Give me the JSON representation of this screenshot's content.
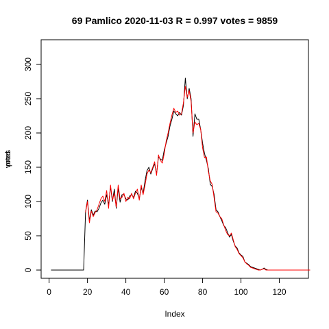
{
  "chart_data": {
    "type": "line",
    "title": "69 Pamlico 2020-11-03 R = 0.997 votes = 9859",
    "xlabel": "Index",
    "ylabel_overlap": [
      "votes",
      "pred"
    ],
    "xlim": [
      1,
      130
    ],
    "ylim": [
      0,
      300
    ],
    "x_ticks": [
      0,
      20,
      40,
      60,
      80,
      100,
      120
    ],
    "y_ticks": [
      0,
      50,
      100,
      150,
      200,
      250,
      300
    ],
    "grid": false,
    "legend": "none",
    "series": [
      {
        "color": "#000000",
        "values": [
          0,
          0,
          0,
          0,
          0,
          0,
          0,
          0,
          0,
          0,
          0,
          0,
          0,
          0,
          0,
          0,
          0,
          0,
          85,
          102,
          72,
          88,
          80,
          86,
          85,
          90,
          98,
          102,
          96,
          110,
          95,
          122,
          100,
          118,
          90,
          120,
          99,
          110,
          110,
          104,
          102,
          108,
          110,
          106,
          115,
          112,
          104,
          120,
          112,
          130,
          145,
          150,
          140,
          148,
          155,
          140,
          165,
          162,
          160,
          175,
          185,
          195,
          210,
          220,
          232,
          228,
          225,
          230,
          226,
          240,
          280,
          250,
          265,
          250,
          195,
          228,
          220,
          220,
          205,
          185,
          170,
          160,
          148,
          125,
          122,
          110,
          88,
          85,
          78,
          72,
          65,
          62,
          55,
          48,
          52,
          42,
          35,
          32,
          25,
          22,
          20,
          12,
          10,
          8,
          5,
          4,
          3,
          2,
          1,
          0,
          1,
          3,
          1,
          0,
          0,
          0,
          0,
          0,
          0,
          0,
          0,
          0,
          0,
          0,
          0,
          0,
          0,
          0,
          0,
          0,
          0,
          0,
          0,
          0,
          0,
          0
        ]
      },
      {
        "color": "#ff0000",
        "values": [
          null,
          null,
          null,
          null,
          null,
          null,
          null,
          null,
          null,
          null,
          null,
          null,
          null,
          null,
          null,
          null,
          null,
          null,
          84,
          100,
          69,
          86,
          78,
          84,
          88,
          96,
          104,
          108,
          100,
          116,
          90,
          124,
          102,
          112,
          92,
          124,
          104,
          106,
          112,
          100,
          106,
          104,
          112,
          104,
          112,
          118,
          102,
          124,
          110,
          124,
          140,
          146,
          142,
          150,
          158,
          138,
          168,
          160,
          156,
          170,
          188,
          200,
          214,
          226,
          236,
          230,
          232,
          226,
          228,
          244,
          268,
          252,
          262,
          246,
          200,
          216,
          212,
          214,
          205,
          178,
          164,
          165,
          144,
          130,
          125,
          105,
          85,
          83,
          78,
          75,
          66,
          58,
          52,
          50,
          54,
          44,
          34,
          30,
          24,
          21,
          18,
          12,
          9,
          7,
          4,
          3,
          2,
          1,
          0,
          0,
          1,
          2,
          0,
          0,
          0,
          0,
          0,
          0,
          0,
          0,
          0,
          0,
          0,
          0,
          0,
          0,
          0,
          0,
          0,
          0,
          0,
          0,
          0,
          0,
          0,
          0
        ]
      }
    ]
  }
}
